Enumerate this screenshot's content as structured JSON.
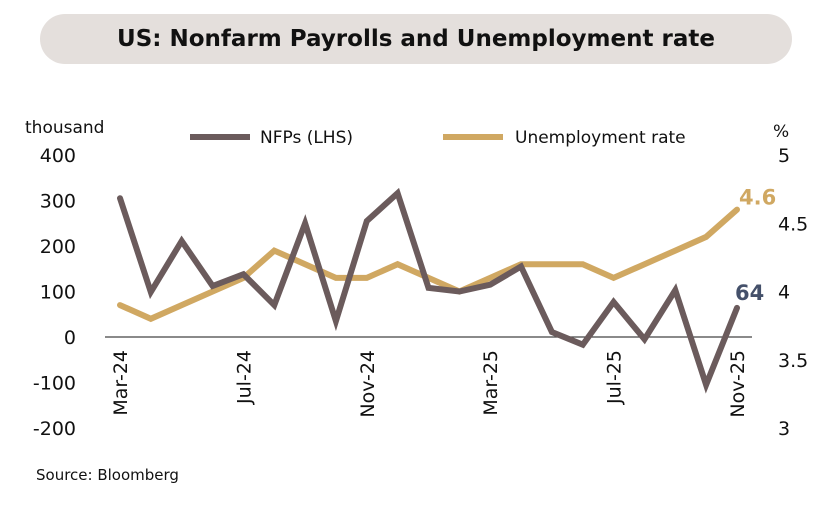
{
  "title": "US: Nonfarm Payrolls and Unemployment rate",
  "source": "Source: Bloomberg",
  "colors": {
    "nfp": "#6b5b5c",
    "unemployment": "#d0a862",
    "nfp_label": "#44506a",
    "title_bg": "#e4dfdc"
  },
  "chart_data": {
    "type": "line",
    "left_axis": {
      "label": "thousand",
      "range": [
        -200,
        400
      ],
      "ticks": [
        "400",
        "300",
        "200",
        "100",
        "0",
        "-100",
        "-200"
      ]
    },
    "right_axis": {
      "label": "%",
      "range": [
        3,
        5
      ],
      "ticks": [
        "5",
        "4.5",
        "4",
        "3.5",
        "3"
      ]
    },
    "x": [
      "Mar-24",
      "Apr-24",
      "May-24",
      "Jun-24",
      "Jul-24",
      "Aug-24",
      "Sep-24",
      "Oct-24",
      "Nov-24",
      "Dec-24",
      "Jan-25",
      "Feb-25",
      "Mar-25",
      "Apr-25",
      "May-25",
      "Jun-25",
      "Jul-25",
      "Aug-25",
      "Sep-25",
      "Oct-25",
      "Nov-25"
    ],
    "x_tick_labels": [
      "Mar-24",
      "Jul-24",
      "Nov-24",
      "Mar-25",
      "Jul-25",
      "Nov-25"
    ],
    "legend_placement": "top",
    "grid": false,
    "series": [
      {
        "name": "NFPs (LHS)",
        "axis": "left",
        "values": [
          305,
          99,
          211,
          112,
          138,
          70,
          250,
          35,
          255,
          316,
          108,
          100,
          115,
          155,
          11,
          -17,
          77,
          -5,
          103,
          -105,
          64
        ],
        "end_label": "64"
      },
      {
        "name": "Unemployment rate",
        "axis": "right",
        "values": [
          3.9,
          3.8,
          3.9,
          4.0,
          4.1,
          4.3,
          4.2,
          4.1,
          4.1,
          4.2,
          4.1,
          4.0,
          4.1,
          4.2,
          4.2,
          4.2,
          4.1,
          4.2,
          4.3,
          4.4,
          4.6
        ],
        "end_label": "4.6"
      }
    ]
  }
}
